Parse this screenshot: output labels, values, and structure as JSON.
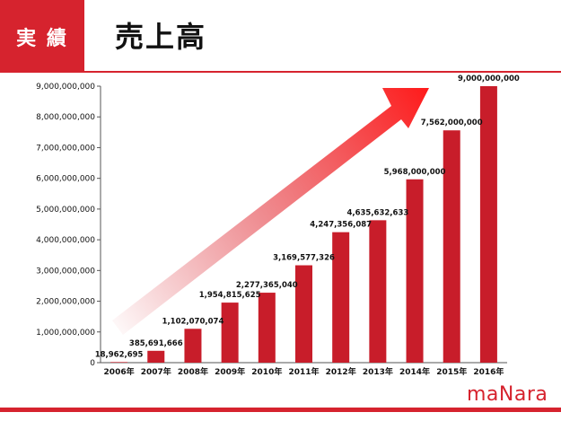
{
  "header": {
    "badge": "実 績",
    "title": "売上高"
  },
  "logo": {
    "text": "maNara"
  },
  "colors": {
    "bar": "#c81d2a",
    "accent": "#d6232e"
  },
  "chart_data": {
    "type": "bar",
    "title": "売上高",
    "categories": [
      "2006年",
      "2007年",
      "2008年",
      "2009年",
      "2010年",
      "2011年",
      "2012年",
      "2013年",
      "2014年",
      "2015年",
      "2016年"
    ],
    "values": [
      18962695,
      385691666,
      1102070074,
      1954815625,
      2277365040,
      3169577326,
      4247356087,
      4635632633,
      5968000000,
      7562000000,
      9000000000
    ],
    "value_labels": [
      "18,962,695",
      "385,691,666",
      "1,102,070,074",
      "1,954,815,625",
      "2,277,365,040",
      "3,169,577,326",
      "4,247,356,087",
      "4,635,632,633",
      "5,968,000,000",
      "7,562,000,000",
      "9,000,000,000"
    ],
    "ylim": [
      0,
      9000000000
    ],
    "yticks": [
      0,
      1000000000,
      2000000000,
      3000000000,
      4000000000,
      5000000000,
      6000000000,
      7000000000,
      8000000000,
      9000000000
    ],
    "ytick_labels": [
      "0",
      "1,000,000,000",
      "2,000,000,000",
      "3,000,000,000",
      "4,000,000,000",
      "5,000,000,000",
      "6,000,000,000",
      "7,000,000,000",
      "8,000,000,000",
      "9,000,000,000"
    ],
    "xlabel": "",
    "ylabel": "",
    "annotation": "upward-trend-arrow"
  }
}
